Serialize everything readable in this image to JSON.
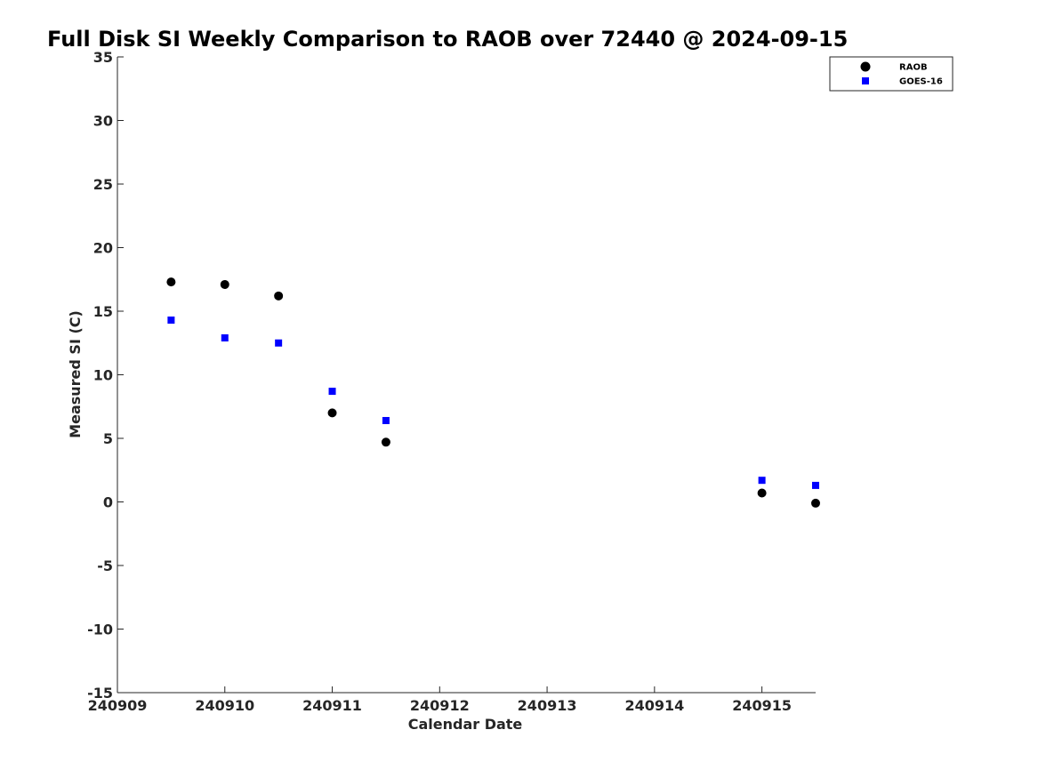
{
  "chart_data": {
    "type": "scatter",
    "title": "Full Disk SI Weekly Comparison to RAOB over 72440 @ 2024-09-15",
    "xlabel": "Calendar Date",
    "ylabel": "Measured SI (C)",
    "xlim": [
      "2024-09-09",
      "2024-09-15T12:00"
    ],
    "ylim": [
      -15,
      35
    ],
    "x_ticks": [
      "240909",
      "240910",
      "240911",
      "240912",
      "240913",
      "240914",
      "240915"
    ],
    "y_ticks": [
      35,
      30,
      25,
      20,
      15,
      10,
      5,
      0,
      -5,
      -10,
      -15
    ],
    "grid": false,
    "legend_position": "top-right",
    "series": [
      {
        "name": "RAOB",
        "marker": "circle",
        "color": "#000000",
        "x": [
          "2024-09-09T12:00",
          "2024-09-10T00:00",
          "2024-09-10T12:00",
          "2024-09-11T00:00",
          "2024-09-11T12:00",
          "2024-09-15T00:00",
          "2024-09-15T12:00"
        ],
        "y": [
          17.3,
          17.1,
          16.2,
          7.0,
          4.7,
          0.7,
          -0.1
        ]
      },
      {
        "name": "GOES-16",
        "marker": "square",
        "color": "#0000ff",
        "x": [
          "2024-09-09T12:00",
          "2024-09-10T00:00",
          "2024-09-10T12:00",
          "2024-09-11T00:00",
          "2024-09-11T12:00",
          "2024-09-15T00:00",
          "2024-09-15T12:00"
        ],
        "y": [
          14.3,
          12.9,
          12.5,
          8.7,
          6.4,
          1.7,
          1.3
        ]
      }
    ]
  }
}
